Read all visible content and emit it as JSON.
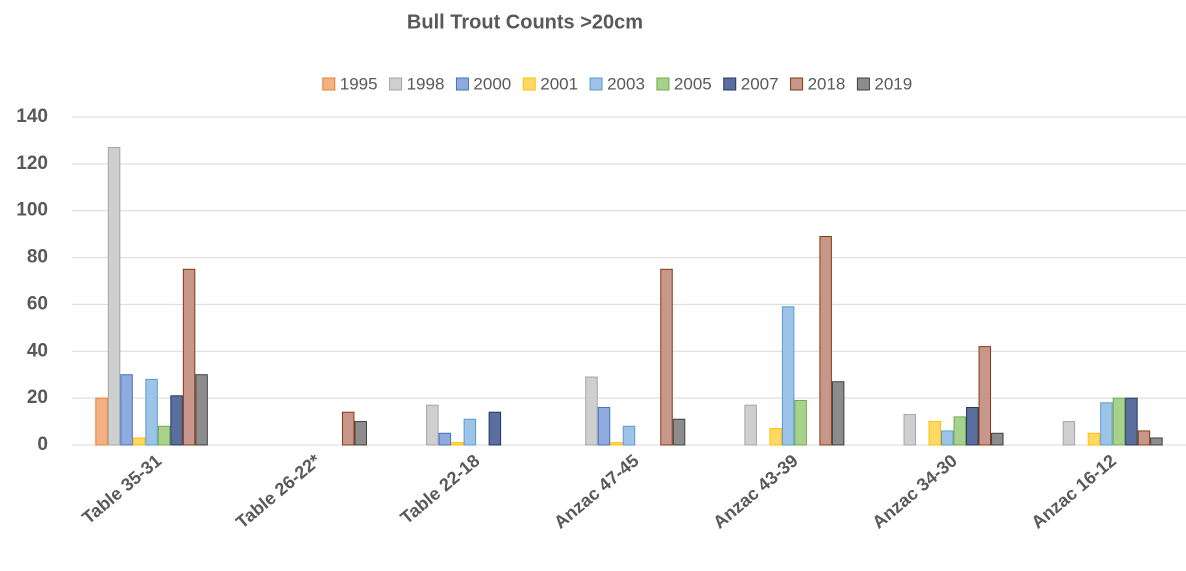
{
  "chart_data": {
    "type": "bar",
    "title": "Bull Trout  Counts >20cm",
    "categories": [
      "Table 35-31",
      "Table 26-22*",
      "Table 22-18",
      "Anzac 47-45",
      "Anzac 43-39",
      "Anzac 34-30",
      "Anzac 16-12"
    ],
    "series": [
      {
        "name": "1995",
        "color": "#f4b183",
        "stroke": "#ed7d31",
        "values": [
          20,
          null,
          null,
          null,
          null,
          null,
          null
        ]
      },
      {
        "name": "1998",
        "color": "#cfcfcf",
        "stroke": "#a5a5a5",
        "values": [
          127,
          null,
          17,
          29,
          17,
          13,
          10
        ]
      },
      {
        "name": "2000",
        "color": "#8faadc",
        "stroke": "#4472c4",
        "values": [
          30,
          null,
          5,
          16,
          null,
          null,
          null
        ]
      },
      {
        "name": "2001",
        "color": "#ffd966",
        "stroke": "#ffc000",
        "values": [
          3,
          null,
          1,
          1,
          7,
          10,
          5
        ]
      },
      {
        "name": "2003",
        "color": "#9dc3e6",
        "stroke": "#5b9bd5",
        "values": [
          28,
          null,
          11,
          8,
          59,
          6,
          18
        ]
      },
      {
        "name": "2005",
        "color": "#a9d18e",
        "stroke": "#70ad47",
        "values": [
          8,
          null,
          null,
          null,
          19,
          12,
          20
        ]
      },
      {
        "name": "2007",
        "color": "#5b6f9e",
        "stroke": "#1f3864",
        "values": [
          21,
          null,
          14,
          null,
          null,
          16,
          20
        ]
      },
      {
        "name": "2018",
        "color": "#c9968c",
        "stroke": "#843c0c",
        "values": [
          75,
          14,
          null,
          75,
          89,
          42,
          6
        ]
      },
      {
        "name": "2019",
        "color": "#8c8c8c",
        "stroke": "#404040",
        "values": [
          30,
          10,
          null,
          11,
          27,
          5,
          3
        ]
      }
    ],
    "ylim": [
      0,
      140
    ],
    "yticks": [
      0,
      20,
      40,
      60,
      80,
      100,
      120,
      140
    ],
    "grid": true,
    "legend": "top"
  }
}
